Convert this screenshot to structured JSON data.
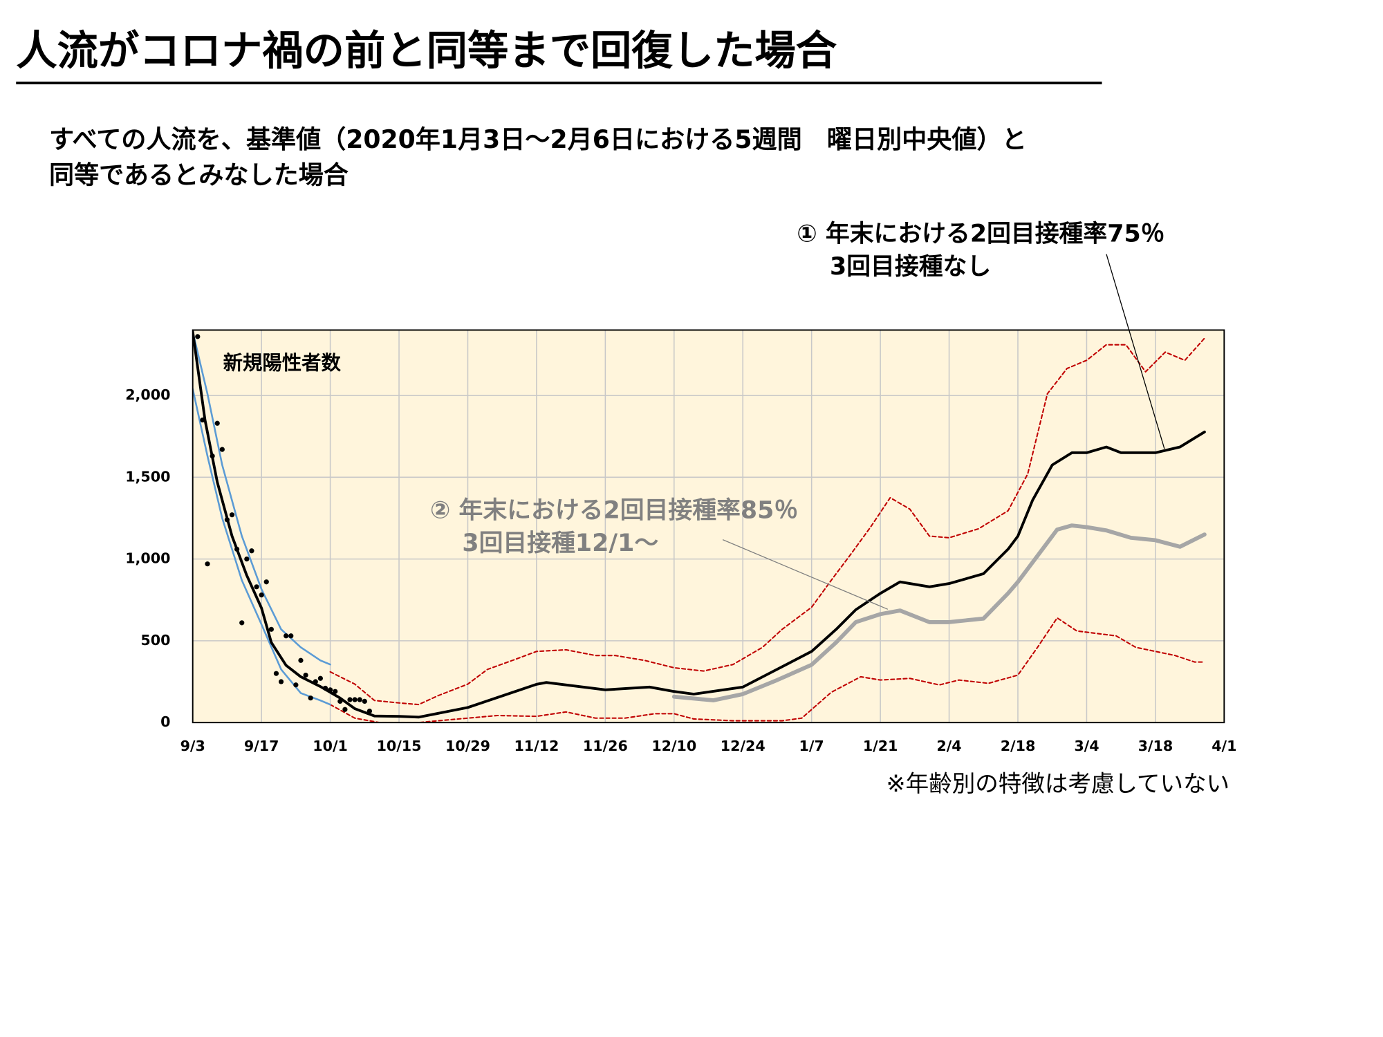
{
  "chart_data": {
    "type": "line",
    "title": "人流がコロナ禍の前と同等まで回復した場合",
    "subtitle": [
      "すべての人流を、基準値（2020年1月3日～2月6日における5週間　曜日別中央値）と",
      "同等であるとみなした場合"
    ],
    "y_label": "新規陽性者数",
    "annotations": [
      [
        "① 年末における2回目接種率75％",
        "3回目接種なし"
      ],
      [
        "② 年末における2回目接種率85％",
        "3回目接種12/1～"
      ]
    ],
    "note": "※年齢別の特徴は考慮していない",
    "xlim": [
      0,
      210
    ],
    "xticks": [
      {
        "value": 0,
        "label": "9/3"
      },
      {
        "value": 14,
        "label": "9/17"
      },
      {
        "value": 28,
        "label": "10/1"
      },
      {
        "value": 42,
        "label": "10/15"
      },
      {
        "value": 56,
        "label": "10/29"
      },
      {
        "value": 70,
        "label": "11/12"
      },
      {
        "value": 84,
        "label": "11/26"
      },
      {
        "value": 98,
        "label": "12/10"
      },
      {
        "value": 112,
        "label": "12/24"
      },
      {
        "value": 126,
        "label": "1/7"
      },
      {
        "value": 140,
        "label": "1/21"
      },
      {
        "value": 154,
        "label": "2/4"
      },
      {
        "value": 168,
        "label": "2/18"
      },
      {
        "value": 182,
        "label": "3/4"
      },
      {
        "value": 196,
        "label": "3/18"
      },
      {
        "value": 210,
        "label": "4/1"
      }
    ],
    "ylim": [
      0,
      2400
    ],
    "yticks": [
      0,
      500,
      {
        "value": 1000,
        "label": "1,000"
      },
      {
        "value": 1500,
        "label": "1,500"
      },
      {
        "value": 2000,
        "label": "2,000"
      }
    ],
    "grid": true,
    "background": "#fff5dc",
    "series": [
      {
        "mark": "dashed",
        "color": "#c00000",
        "x": [
          28,
          33,
          37,
          42,
          46,
          50,
          56,
          60,
          66,
          70,
          76,
          82,
          86,
          92,
          98,
          104,
          110,
          116,
          120,
          126,
          130,
          134,
          138,
          142,
          146,
          150,
          154,
          160,
          166,
          170,
          174,
          178,
          182,
          186,
          190,
          194,
          198,
          202,
          206
        ],
        "values": [
          310,
          235,
          135,
          120,
          110,
          165,
          235,
          325,
          390,
          435,
          445,
          410,
          410,
          380,
          335,
          315,
          355,
          460,
          570,
          705,
          870,
          1030,
          1195,
          1375,
          1305,
          1140,
          1130,
          1185,
          1295,
          1520,
          2010,
          2165,
          2215,
          2310,
          2310,
          2145,
          2265,
          2215,
          2350
        ]
      },
      {
        "mark": "dashed",
        "color": "#c00000",
        "x": [
          28,
          33,
          38,
          46,
          50,
          56,
          62,
          70,
          76,
          82,
          88,
          94,
          98,
          102,
          110,
          120,
          124,
          130,
          136,
          140,
          146,
          152,
          156,
          162,
          168,
          172,
          176,
          180,
          184,
          188,
          192,
          196,
          200,
          204,
          206
        ],
        "values": [
          110,
          27,
          0,
          0,
          11,
          27,
          43,
          38,
          65,
          27,
          27,
          54,
          54,
          22,
          11,
          11,
          27,
          185,
          280,
          260,
          270,
          230,
          260,
          240,
          290,
          460,
          640,
          560,
          545,
          530,
          460,
          435,
          410,
          370,
          370
        ]
      },
      {
        "mark": "line",
        "color": "#5b9bd5",
        "width": 2,
        "x": [
          0,
          3,
          6,
          10,
          14,
          18,
          22,
          26,
          28
        ],
        "values": [
          2390,
          2010,
          1575,
          1140,
          815,
          570,
          460,
          380,
          355
        ]
      },
      {
        "mark": "line",
        "color": "#5b9bd5",
        "width": 2,
        "x": [
          0,
          3,
          6,
          10,
          14,
          18,
          22,
          26,
          28
        ],
        "values": [
          2040,
          1630,
          1250,
          870,
          600,
          325,
          180,
          135,
          110
        ]
      },
      {
        "mark": "line",
        "color": "#a6a6a6",
        "width": 4.5,
        "x": [
          98,
          106,
          112,
          119,
          126,
          131,
          135,
          140,
          144,
          150,
          154,
          161,
          166,
          168,
          171,
          176,
          179,
          182,
          186,
          191,
          196,
          201,
          206
        ],
        "values": [
          158,
          136,
          174,
          260,
          353,
          490,
          614,
          663,
          685,
          614,
          614,
          636,
          790,
          860,
          980,
          1180,
          1205,
          1195,
          1175,
          1130,
          1115,
          1075,
          1150
        ]
      },
      {
        "mark": "line",
        "color": "#000000",
        "width": 3,
        "x": [
          0,
          2.5,
          5,
          8,
          11,
          14,
          16,
          19,
          22,
          26,
          30,
          33,
          37,
          42,
          46,
          56,
          70,
          72,
          84,
          93,
          98,
          102,
          112,
          119,
          126,
          131,
          135,
          140,
          144,
          150,
          154,
          161,
          166,
          168,
          171,
          175,
          179,
          182,
          186,
          189,
          196,
          201,
          206
        ],
        "values": [
          2390,
          1850,
          1470,
          1140,
          900,
          700,
          490,
          350,
          280,
          220,
          150,
          85,
          40,
          38,
          33,
          92,
          234,
          245,
          200,
          217,
          190,
          174,
          217,
          326,
          435,
          570,
          690,
          790,
          860,
          830,
          850,
          910,
          1060,
          1140,
          1360,
          1575,
          1650,
          1650,
          1685,
          1650,
          1650,
          1685,
          1777
        ]
      },
      {
        "mark": "dot",
        "color": "#000000",
        "x": [
          1,
          2,
          3,
          4,
          5,
          6,
          7,
          8,
          9,
          10,
          11,
          12,
          13,
          14,
          15,
          16,
          17,
          18,
          19,
          20,
          21,
          22,
          23,
          24,
          25,
          26,
          27,
          28,
          29,
          30,
          31,
          32,
          33,
          34,
          35,
          36
        ],
        "values": [
          2360,
          1850,
          970,
          1630,
          1830,
          1670,
          1240,
          1270,
          1060,
          610,
          1000,
          1050,
          830,
          780,
          860,
          570,
          300,
          250,
          530,
          530,
          230,
          380,
          290,
          150,
          250,
          270,
          210,
          200,
          190,
          130,
          80,
          140,
          140,
          140,
          130,
          70
        ]
      }
    ]
  }
}
